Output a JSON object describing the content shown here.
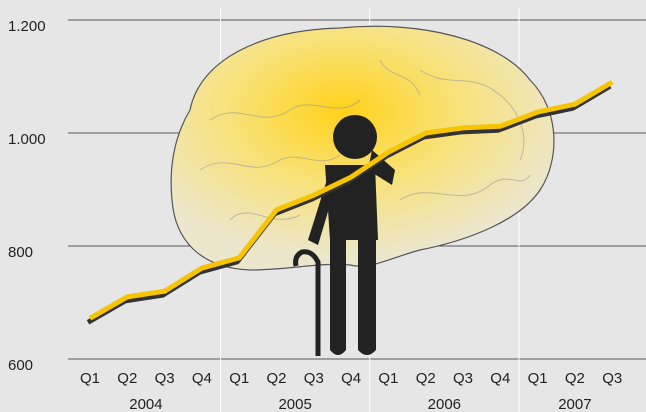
{
  "chart_data": {
    "type": "line",
    "groups": [
      {
        "label": "2004",
        "categories": [
          "Q1",
          "Q2",
          "Q3",
          "Q4"
        ]
      },
      {
        "label": "2005",
        "categories": [
          "Q1",
          "Q2",
          "Q3",
          "Q4"
        ]
      },
      {
        "label": "2006",
        "categories": [
          "Q1",
          "Q2",
          "Q3",
          "Q4"
        ]
      },
      {
        "label": "2007",
        "categories": [
          "Q1",
          "Q2",
          "Q3"
        ]
      }
    ],
    "values": [
      672,
      710,
      720,
      761,
      779,
      864,
      890,
      922,
      966,
      1000,
      1009,
      1012,
      1037,
      1051,
      1090
    ],
    "color": "#f7c500",
    "ylim": [
      600,
      1200
    ],
    "yticks": [
      600,
      800,
      {
        "value": 1000,
        "label": "1.000"
      },
      {
        "value": 1200,
        "label": "1.200"
      }
    ],
    "grid": true
  }
}
